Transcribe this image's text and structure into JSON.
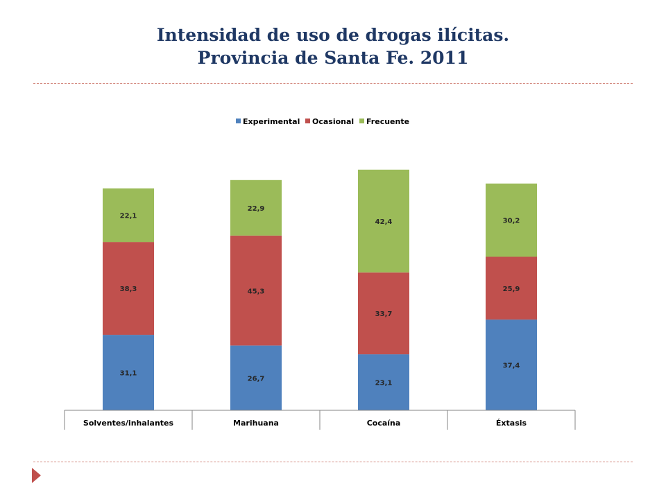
{
  "slide": {
    "title_line1": "Intensidad de uso de drogas ilícitas.",
    "title_line2": "Provincia de Santa Fe. 2011"
  },
  "chart_data": {
    "type": "bar",
    "stacked": true,
    "categories": [
      "Solventes/inhalantes",
      "Marihuana",
      "Cocaína",
      "Éxtasis"
    ],
    "series": [
      {
        "name": "Experimental",
        "color": "#4f81bd",
        "values": [
          31.1,
          26.7,
          23.1,
          37.4
        ],
        "labels": [
          "31,1",
          "26,7",
          "23,1",
          "37,4"
        ]
      },
      {
        "name": "Ocasional",
        "color": "#c0504d",
        "values": [
          38.3,
          45.3,
          33.7,
          25.9
        ],
        "labels": [
          "38,3",
          "45,3",
          "33,7",
          "25,9"
        ]
      },
      {
        "name": "Frecuente",
        "color": "#9bbb59",
        "values": [
          22.1,
          22.9,
          42.4,
          30.2
        ],
        "labels": [
          "22,1",
          "22,9",
          "42,4",
          "30,2"
        ]
      }
    ],
    "legend_position": "top",
    "grid": false,
    "ylim": [
      0,
      100
    ]
  }
}
